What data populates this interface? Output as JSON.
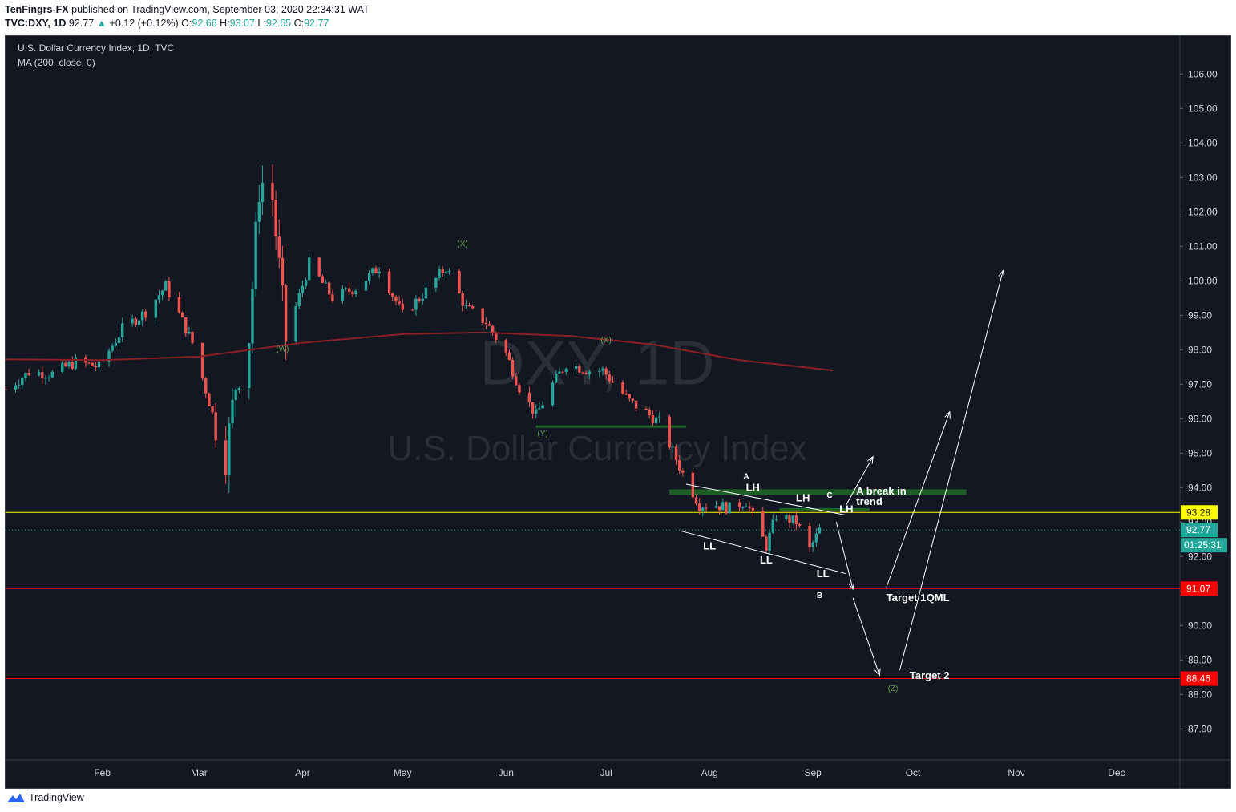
{
  "header": {
    "author": "TenFingrs-FX",
    "published_text": "published on TradingView.com, September 03, 2020 22:34:31 WAT",
    "symbol": "TVC:DXY, 1D",
    "last": "92.77",
    "change": "+0.12 (+0.12%)",
    "open_label": "O:",
    "open": "92.66",
    "high_label": "H:",
    "high": "93.07",
    "low_label": "L:",
    "low": "92.65",
    "close_label": "C:",
    "close": "92.77"
  },
  "legend": {
    "title": "U.S. Dollar Currency Index, 1D, TVC",
    "indicator": "MA (200, close, 0)"
  },
  "watermark": {
    "symbol": "DXY, 1D",
    "name": "U.S. Dollar Currency Index"
  },
  "footer": {
    "brand": "TradingView"
  },
  "colors": {
    "background": "#131722",
    "up": "#26a69a",
    "down": "#ef5350",
    "ma": "#8b1f26",
    "support_zone": "#1f6b24",
    "resistance": "#ffff00",
    "target": "#ff0000",
    "annotation": "#ffffff",
    "wave_label": "#5ea04a"
  },
  "chart_data": {
    "type": "candlestick",
    "title": "U.S. Dollar Currency Index, 1D, TVC",
    "ylim": [
      86.1,
      107.1
    ],
    "x_range": [
      "2020-01-03",
      "2020-12-20"
    ],
    "yticks": [
      "87.00",
      "88.00",
      "89.00",
      "90.00",
      "91.00",
      "92.00",
      "93.00",
      "94.00",
      "95.00",
      "96.00",
      "97.00",
      "98.00",
      "99.00",
      "100.00",
      "101.00",
      "102.00",
      "103.00",
      "104.00",
      "105.00",
      "106.00"
    ],
    "xticks": [
      {
        "date": "2020-02-01",
        "label": "Feb"
      },
      {
        "date": "2020-03-01",
        "label": "Mar"
      },
      {
        "date": "2020-04-01",
        "label": "Apr"
      },
      {
        "date": "2020-05-01",
        "label": "May"
      },
      {
        "date": "2020-06-01",
        "label": "Jun"
      },
      {
        "date": "2020-07-01",
        "label": "Jul"
      },
      {
        "date": "2020-08-01",
        "label": "Aug"
      },
      {
        "date": "2020-09-01",
        "label": "Sep"
      },
      {
        "date": "2020-10-01",
        "label": "Oct"
      },
      {
        "date": "2020-11-01",
        "label": "Nov"
      },
      {
        "date": "2020-12-01",
        "label": "Dec"
      }
    ],
    "close_series": [
      [
        "2020-01-03",
        96.85
      ],
      [
        "2020-01-10",
        97.35
      ],
      [
        "2020-01-17",
        97.3
      ],
      [
        "2020-01-24",
        97.65
      ],
      [
        "2020-01-31",
        97.5
      ],
      [
        "2020-02-07",
        98.6
      ],
      [
        "2020-02-14",
        99.1
      ],
      [
        "2020-02-20",
        99.85
      ],
      [
        "2020-02-28",
        98.2
      ],
      [
        "2020-03-06",
        95.8
      ],
      [
        "2020-03-09",
        94.9
      ],
      [
        "2020-03-12",
        97.0
      ],
      [
        "2020-03-16",
        98.4
      ],
      [
        "2020-03-19",
        102.7
      ],
      [
        "2020-03-20",
        102.85
      ],
      [
        "2020-03-23",
        102.4
      ],
      [
        "2020-03-27",
        98.3
      ],
      [
        "2020-04-03",
        100.5
      ],
      [
        "2020-04-10",
        99.5
      ],
      [
        "2020-04-17",
        99.8
      ],
      [
        "2020-04-24",
        100.4
      ],
      [
        "2020-05-01",
        99.0
      ],
      [
        "2020-05-08",
        99.7
      ],
      [
        "2020-05-14",
        100.4
      ],
      [
        "2020-05-20",
        99.2
      ],
      [
        "2020-05-26",
        98.8
      ],
      [
        "2020-06-01",
        97.9
      ],
      [
        "2020-06-05",
        96.9
      ],
      [
        "2020-06-10",
        96.1
      ],
      [
        "2020-06-15",
        97.0
      ],
      [
        "2020-06-19",
        97.6
      ],
      [
        "2020-06-26",
        97.4
      ],
      [
        "2020-06-30",
        97.4
      ],
      [
        "2020-07-08",
        96.5
      ],
      [
        "2020-07-17",
        95.9
      ],
      [
        "2020-07-24",
        94.4
      ],
      [
        "2020-07-29",
        93.5
      ],
      [
        "2020-08-03",
        93.5
      ],
      [
        "2020-08-07",
        93.4
      ],
      [
        "2020-08-12",
        93.6
      ],
      [
        "2020-08-18",
        92.3
      ],
      [
        "2020-08-21",
        93.2
      ],
      [
        "2020-08-27",
        93.0
      ],
      [
        "2020-08-31",
        92.2
      ],
      [
        "2020-09-03",
        92.77
      ]
    ],
    "candles_count_note": "daily OHLC candles, approximated from the close series",
    "ma": {
      "name": "MA (200, close, 0)",
      "values": [
        [
          "2020-01-03",
          97.72
        ],
        [
          "2020-02-01",
          97.7
        ],
        [
          "2020-03-01",
          97.8
        ],
        [
          "2020-04-01",
          98.2
        ],
        [
          "2020-05-01",
          98.45
        ],
        [
          "2020-05-25",
          98.5
        ],
        [
          "2020-06-20",
          98.4
        ],
        [
          "2020-07-15",
          98.15
        ],
        [
          "2020-08-10",
          97.7
        ],
        [
          "2020-09-07",
          97.4
        ]
      ]
    },
    "price_lines": [
      {
        "value": "93.28",
        "kind": "resistance"
      },
      {
        "value": "92.77",
        "kind": "last"
      },
      {
        "value": "91.07",
        "kind": "target"
      },
      {
        "value": "88.46",
        "kind": "target"
      }
    ],
    "countdown": "01:25:31",
    "annotations": {
      "wave_labels": [
        {
          "text": "(W)",
          "date": "2020-03-26",
          "y": 97.95
        },
        {
          "text": "(X)",
          "date": "2020-05-19",
          "y": 101.0
        },
        {
          "text": "(X)",
          "date": "2020-07-01",
          "y": 98.2
        },
        {
          "text": "(Y)",
          "date": "2020-06-12",
          "y": 95.5
        },
        {
          "text": "(Z)",
          "date": "2020-09-25",
          "y": 88.1
        }
      ],
      "structure_labels": [
        {
          "text": "A",
          "date": "2020-08-12",
          "y": 94.25
        },
        {
          "text": "B",
          "date": "2020-09-03",
          "y": 90.8
        },
        {
          "text": "C",
          "date": "2020-09-06",
          "y": 93.7
        },
        {
          "text": "LH",
          "date": "2020-08-14",
          "y": 93.9
        },
        {
          "text": "LH",
          "date": "2020-08-29",
          "y": 93.6
        },
        {
          "text": "LH",
          "date": "2020-09-11",
          "y": 93.28
        },
        {
          "text": "LL",
          "date": "2020-08-01",
          "y": 92.2
        },
        {
          "text": "LL",
          "date": "2020-08-18",
          "y": 91.8
        },
        {
          "text": "LL",
          "date": "2020-09-04",
          "y": 91.4
        }
      ],
      "texts": [
        {
          "text": "A break in",
          "date": "2020-09-14",
          "y": 93.8
        },
        {
          "text": "trend",
          "date": "2020-09-14",
          "y": 93.5
        },
        {
          "text": "Target 1",
          "date": "2020-09-23",
          "y": 90.7
        },
        {
          "text": "QML",
          "date": "2020-10-05",
          "y": 90.7
        },
        {
          "text": "Target 2",
          "date": "2020-09-30",
          "y": 88.45
        }
      ],
      "zones": [
        {
          "from": "2020-06-10",
          "to": "2020-07-25",
          "y": 95.77
        },
        {
          "from": "2020-07-20",
          "to": "2020-10-17",
          "y": 93.87
        },
        {
          "from": "2020-08-22",
          "to": "2020-09-18",
          "y": 93.37
        }
      ],
      "channel": [
        [
          [
            "2020-07-25",
            94.1
          ],
          [
            "2020-09-11",
            93.2
          ]
        ],
        [
          [
            "2020-07-23",
            92.75
          ],
          [
            "2020-09-11",
            91.5
          ]
        ]
      ],
      "arrows": [
        [
          [
            "2020-09-11",
            93.5
          ],
          [
            "2020-09-19",
            94.9
          ]
        ],
        [
          [
            "2020-09-08",
            93.0
          ],
          [
            "2020-09-13",
            91.05
          ]
        ],
        [
          [
            "2020-09-13",
            90.8
          ],
          [
            "2020-09-21",
            88.55
          ]
        ],
        [
          [
            "2020-09-23",
            91.1
          ],
          [
            "2020-10-12",
            96.2
          ]
        ],
        [
          [
            "2020-09-27",
            88.7
          ],
          [
            "2020-10-28",
            100.3
          ]
        ]
      ]
    }
  }
}
